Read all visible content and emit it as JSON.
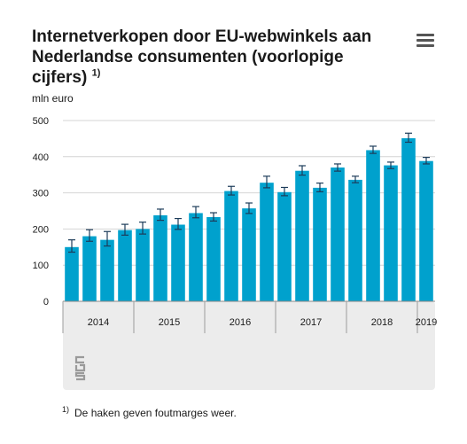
{
  "header": {
    "title": "Internetverkopen door EU-webwinkels aan Nederlandse consumenten (voorlopige cijfers)",
    "title_note": "1)",
    "menu_icon": "hamburger-menu-icon"
  },
  "footnote": {
    "marker": "1)",
    "text": "De haken geven foutmarges weer."
  },
  "logo": {
    "icon": "cbs-logo-icon"
  },
  "chart_data": {
    "type": "bar",
    "ylabel": "mln euro",
    "ylim": [
      0,
      500
    ],
    "yticks": [
      0,
      100,
      200,
      300,
      400,
      500
    ],
    "grid": true,
    "bar_color": "#00a1cd",
    "year_groups": [
      {
        "label": "2014",
        "start": 0,
        "end": 3
      },
      {
        "label": "2015",
        "start": 4,
        "end": 7
      },
      {
        "label": "2016",
        "start": 8,
        "end": 11
      },
      {
        "label": "2017",
        "start": 12,
        "end": 15
      },
      {
        "label": "2018",
        "start": 16,
        "end": 19
      },
      {
        "label": "2019",
        "start": 20,
        "end": 20
      }
    ],
    "values": [
      150,
      180,
      170,
      197,
      200,
      238,
      212,
      244,
      233,
      305,
      257,
      328,
      302,
      361,
      314,
      370,
      336,
      418,
      376,
      451,
      388
    ],
    "error_low": [
      136,
      166,
      153,
      183,
      186,
      224,
      199,
      231,
      222,
      294,
      243,
      314,
      292,
      349,
      303,
      360,
      328,
      409,
      367,
      440,
      380
    ],
    "error_high": [
      170,
      198,
      193,
      213,
      219,
      255,
      229,
      262,
      245,
      318,
      272,
      346,
      315,
      375,
      327,
      380,
      346,
      429,
      385,
      465,
      398
    ]
  }
}
